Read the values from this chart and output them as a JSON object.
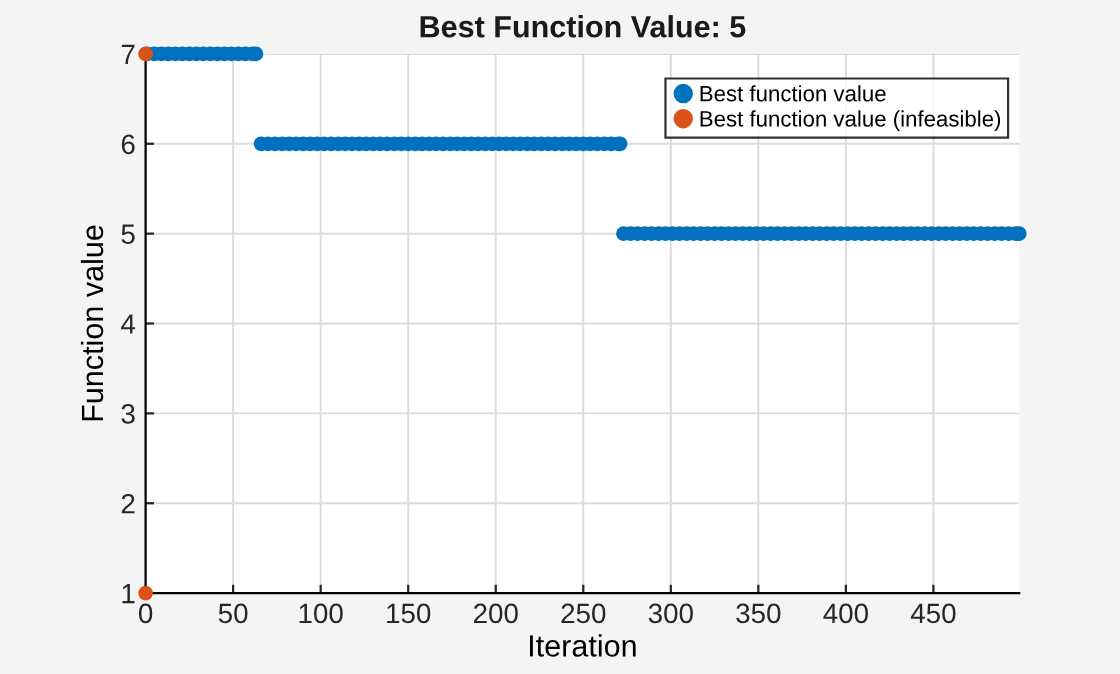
{
  "chart_data": {
    "type": "scatter",
    "title": "Best Function Value: 5",
    "xlabel": "Iteration",
    "ylabel": "Function value",
    "xlim": [
      0,
      499
    ],
    "xticks": [
      0,
      50,
      100,
      150,
      200,
      250,
      300,
      350,
      400,
      450
    ],
    "ylim": [
      1,
      7
    ],
    "yticks": [
      1,
      2,
      3,
      4,
      5,
      6,
      7
    ],
    "grid": true,
    "legend": "top right",
    "marker": "circle",
    "series": [
      {
        "name": "Best function value",
        "color": "#0072bd",
        "x": [
          1,
          5,
          9,
          13,
          17,
          21,
          25,
          29,
          33,
          37,
          41,
          45,
          49,
          53,
          57,
          61,
          63,
          66,
          70,
          74,
          78,
          82,
          86,
          90,
          94,
          98,
          102,
          106,
          110,
          114,
          118,
          122,
          126,
          130,
          134,
          138,
          142,
          146,
          150,
          154,
          158,
          162,
          166,
          170,
          174,
          178,
          182,
          186,
          190,
          194,
          198,
          202,
          206,
          210,
          214,
          218,
          222,
          226,
          230,
          234,
          238,
          242,
          246,
          250,
          254,
          258,
          262,
          266,
          270,
          271,
          273,
          277,
          281,
          285,
          289,
          293,
          297,
          301,
          305,
          309,
          313,
          317,
          321,
          325,
          329,
          333,
          337,
          341,
          345,
          349,
          353,
          357,
          361,
          365,
          369,
          373,
          377,
          381,
          385,
          389,
          393,
          397,
          401,
          405,
          409,
          413,
          417,
          421,
          425,
          429,
          433,
          437,
          441,
          445,
          449,
          453,
          457,
          461,
          465,
          469,
          473,
          477,
          481,
          485,
          489,
          493,
          497,
          499
        ],
        "values": [
          7,
          7,
          7,
          7,
          7,
          7,
          7,
          7,
          7,
          7,
          7,
          7,
          7,
          7,
          7,
          7,
          7,
          6,
          6,
          6,
          6,
          6,
          6,
          6,
          6,
          6,
          6,
          6,
          6,
          6,
          6,
          6,
          6,
          6,
          6,
          6,
          6,
          6,
          6,
          6,
          6,
          6,
          6,
          6,
          6,
          6,
          6,
          6,
          6,
          6,
          6,
          6,
          6,
          6,
          6,
          6,
          6,
          6,
          6,
          6,
          6,
          6,
          6,
          6,
          6,
          6,
          6,
          6,
          6,
          6,
          5,
          5,
          5,
          5,
          5,
          5,
          5,
          5,
          5,
          5,
          5,
          5,
          5,
          5,
          5,
          5,
          5,
          5,
          5,
          5,
          5,
          5,
          5,
          5,
          5,
          5,
          5,
          5,
          5,
          5,
          5,
          5,
          5,
          5,
          5,
          5,
          5,
          5,
          5,
          5,
          5,
          5,
          5,
          5,
          5,
          5,
          5,
          5,
          5,
          5,
          5,
          5,
          5,
          5,
          5,
          5,
          5,
          5
        ]
      },
      {
        "name": "Best function value (infeasible)",
        "color": "#d95319",
        "x": [
          0,
          0
        ],
        "values": [
          7,
          1
        ]
      }
    ]
  }
}
